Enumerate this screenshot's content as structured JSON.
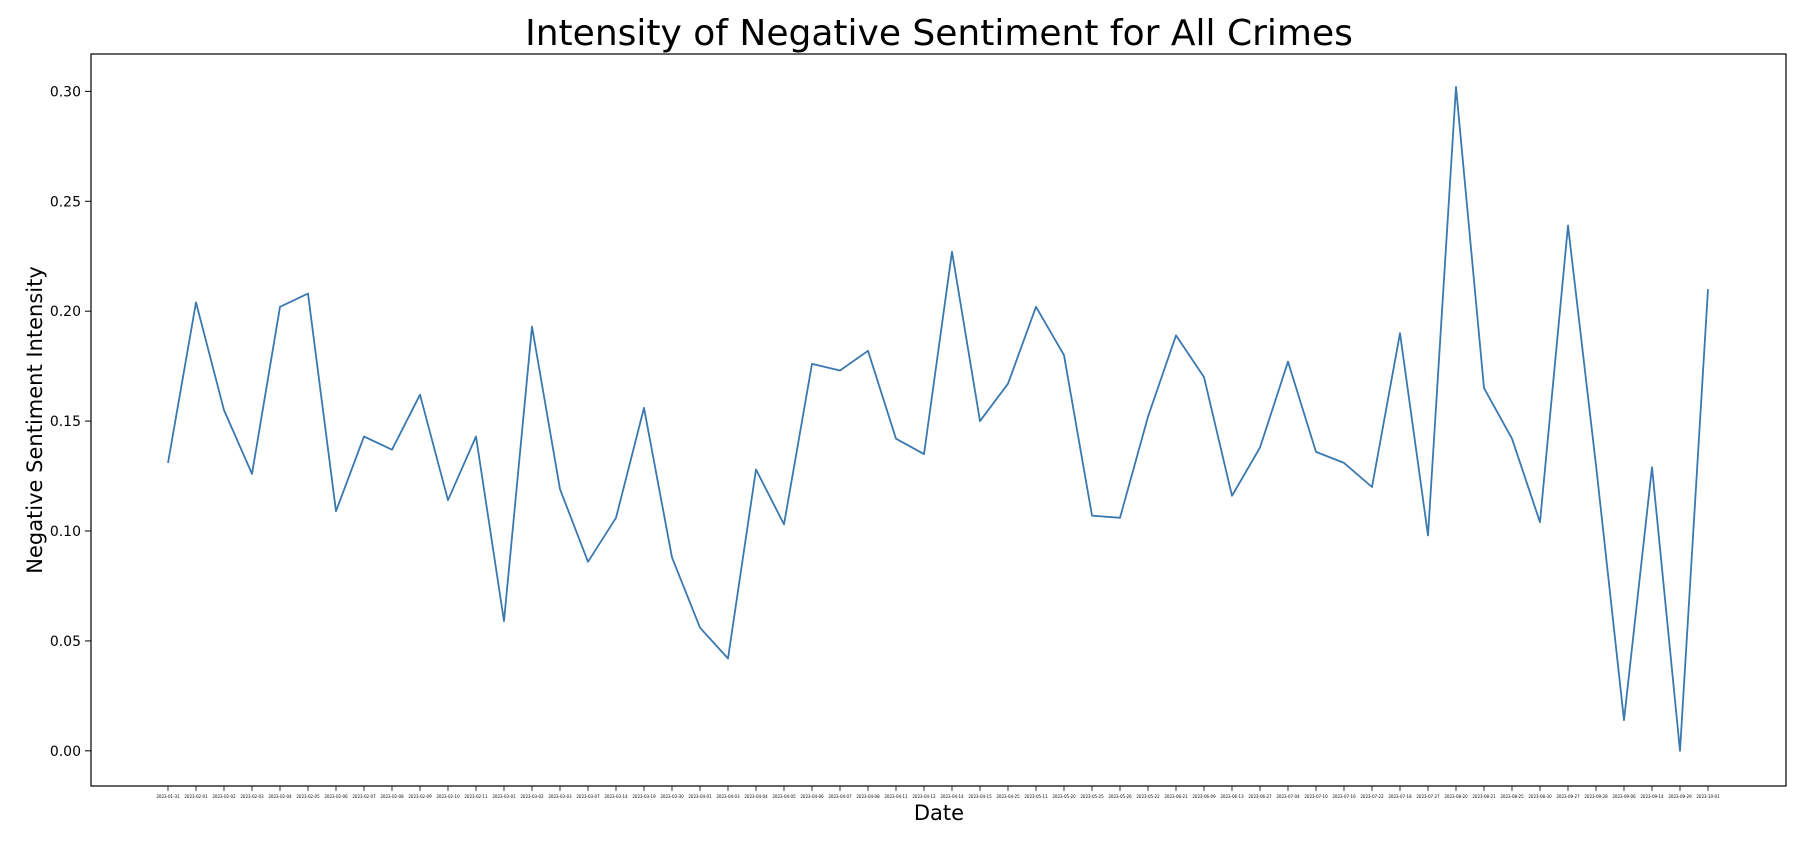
{
  "chart_data": {
    "type": "line",
    "title": "Intensity of Negative Sentiment for All Crimes",
    "xlabel": "Date",
    "ylabel": "Negative Sentiment Intensity",
    "ylim": [
      -0.016,
      0.317
    ],
    "yticks": [
      0.0,
      0.05,
      0.1,
      0.15,
      0.2,
      0.25,
      0.3
    ],
    "ytick_labels": [
      "0.00",
      "0.05",
      "0.10",
      "0.15",
      "0.20",
      "0.25",
      "0.30"
    ],
    "grid": false,
    "legend": "none",
    "line_color": "#3a78b0",
    "x": [
      "2023-01-31",
      "2023-02-01",
      "2023-02-02",
      "2023-02-03",
      "2023-02-04",
      "2023-02-05",
      "2023-02-06",
      "2023-02-07",
      "2023-02-08",
      "2023-02-09",
      "2023-02-10",
      "2023-02-11",
      "2023-03-01",
      "2023-03-02",
      "2023-03-03",
      "2023-03-07",
      "2023-03-14",
      "2023-03-19",
      "2023-03-30",
      "2023-04-01",
      "2023-04-03",
      "2023-04-04",
      "2023-04-05",
      "2023-04-06",
      "2023-04-07",
      "2023-04-08",
      "2023-04-11",
      "2023-04-12",
      "2023-04-14",
      "2023-04-15",
      "2023-04-25",
      "2023-05-11",
      "2023-05-20",
      "2023-05-25",
      "2023-05-26",
      "2023-05-22",
      "2023-06-21",
      "2023-06-09",
      "2023-06-13",
      "2023-06-27",
      "2023-07-04",
      "2023-07-10",
      "2023-07-16",
      "2023-07-22",
      "2023-07-18",
      "2023-07-27",
      "2023-08-20",
      "2023-08-21",
      "2023-08-25",
      "2023-08-30",
      "2023-09-27",
      "2023-09-28",
      "2023-09-06",
      "2023-09-14",
      "2023-09-29",
      "2023-10-01"
    ],
    "series": [
      {
        "values": [
          0.131,
          0.204,
          0.155,
          0.126,
          0.202,
          0.208,
          0.109,
          0.143,
          0.137,
          0.162,
          0.114,
          0.143,
          0.059,
          0.193,
          0.119,
          0.086,
          0.106,
          0.156,
          0.088,
          0.056,
          0.042,
          0.128,
          0.103,
          0.176,
          0.173,
          0.182,
          0.142,
          0.135,
          0.227,
          0.15,
          0.167,
          0.202,
          0.18,
          0.107,
          0.106,
          0.152,
          0.189,
          0.17,
          0.116,
          0.138,
          0.177,
          0.136,
          0.131,
          0.12,
          0.19,
          0.098,
          0.302,
          0.165,
          0.142,
          0.104,
          0.239,
          0.13,
          0.014,
          0.129,
          0.0,
          0.21
        ]
      }
    ]
  }
}
